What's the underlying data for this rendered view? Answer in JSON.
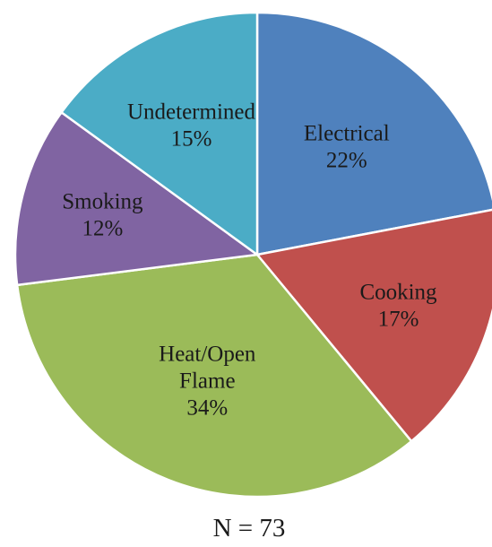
{
  "chart_data": {
    "type": "pie",
    "categories": [
      "Electrical",
      "Cooking",
      "Heat/Open Flame",
      "Smoking",
      "Undetermined"
    ],
    "values": [
      22,
      17,
      34,
      12,
      15
    ],
    "value_labels": [
      "22%",
      "17%",
      "34%",
      "12%",
      "15%"
    ],
    "label_lines": [
      [
        "Electrical",
        "22%"
      ],
      [
        "Cooking",
        "17%"
      ],
      [
        "Heat/Open",
        "Flame",
        "34%"
      ],
      [
        "Smoking",
        "12%"
      ],
      [
        "Undetermined",
        "15%"
      ]
    ],
    "colors": [
      "#4F81BD",
      "#C0504D",
      "#9BBB59",
      "#8064A2",
      "#4BACC6"
    ],
    "start": "12 o'clock",
    "direction": "clockwise",
    "legend": "none",
    "caption": "N = 73"
  }
}
